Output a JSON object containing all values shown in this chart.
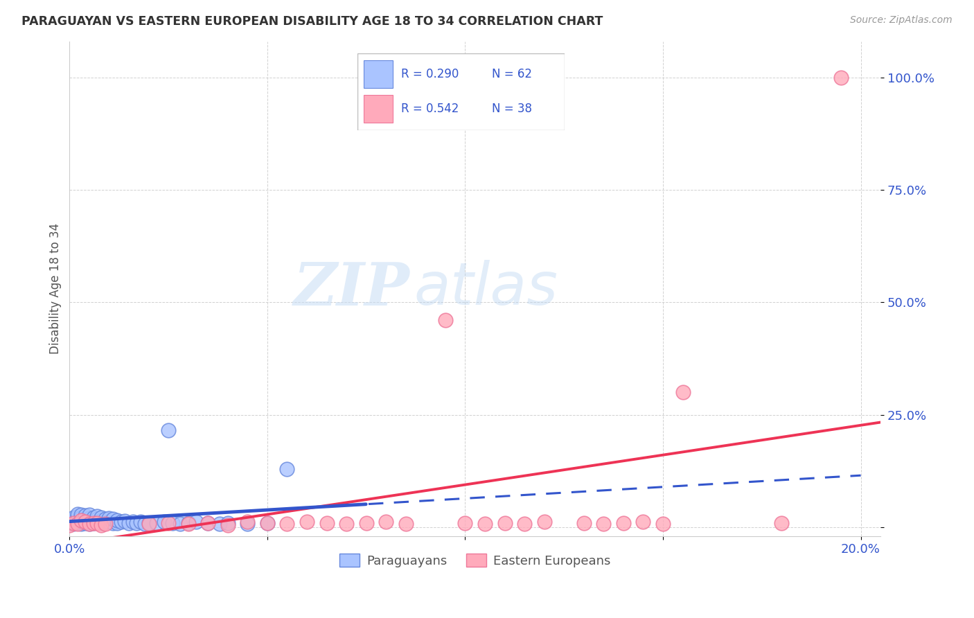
{
  "title": "PARAGUAYAN VS EASTERN EUROPEAN DISABILITY AGE 18 TO 34 CORRELATION CHART",
  "source": "Source: ZipAtlas.com",
  "ylabel": "Disability Age 18 to 34",
  "x_min": 0.0,
  "x_max": 0.205,
  "y_min": -0.02,
  "y_max": 1.08,
  "x_ticks": [
    0.0,
    0.05,
    0.1,
    0.15,
    0.2
  ],
  "x_tick_labels": [
    "0.0%",
    "",
    "",
    "",
    "20.0%"
  ],
  "y_ticks": [
    0.0,
    0.25,
    0.5,
    0.75,
    1.0
  ],
  "y_tick_labels": [
    "",
    "25.0%",
    "50.0%",
    "75.0%",
    "100.0%"
  ],
  "blue_face": "#aac4ff",
  "blue_edge": "#6688dd",
  "pink_face": "#ffaabb",
  "pink_edge": "#ee7799",
  "trend_blue": "#3355cc",
  "trend_pink": "#ee3355",
  "R_paraguayan": 0.29,
  "N_paraguayan": 62,
  "R_eastern": 0.542,
  "N_eastern": 38,
  "watermark_zip": "ZIP",
  "watermark_atlas": "atlas",
  "paraguayan_x": [
    0.0,
    0.0,
    0.001,
    0.001,
    0.001,
    0.001,
    0.002,
    0.002,
    0.002,
    0.002,
    0.002,
    0.003,
    0.003,
    0.003,
    0.003,
    0.003,
    0.004,
    0.004,
    0.004,
    0.004,
    0.005,
    0.005,
    0.005,
    0.005,
    0.006,
    0.006,
    0.006,
    0.007,
    0.007,
    0.007,
    0.008,
    0.008,
    0.008,
    0.009,
    0.009,
    0.01,
    0.01,
    0.011,
    0.011,
    0.012,
    0.012,
    0.013,
    0.014,
    0.015,
    0.016,
    0.017,
    0.018,
    0.019,
    0.02,
    0.022,
    0.024,
    0.026,
    0.028,
    0.03,
    0.032,
    0.035,
    0.038,
    0.04,
    0.045,
    0.05,
    0.025,
    0.055
  ],
  "paraguayan_y": [
    0.01,
    0.015,
    0.008,
    0.012,
    0.018,
    0.022,
    0.01,
    0.014,
    0.018,
    0.025,
    0.03,
    0.008,
    0.012,
    0.016,
    0.022,
    0.028,
    0.01,
    0.014,
    0.02,
    0.026,
    0.008,
    0.015,
    0.02,
    0.028,
    0.01,
    0.016,
    0.022,
    0.012,
    0.018,
    0.025,
    0.01,
    0.016,
    0.022,
    0.012,
    0.018,
    0.012,
    0.02,
    0.01,
    0.018,
    0.01,
    0.016,
    0.012,
    0.014,
    0.01,
    0.012,
    0.01,
    0.012,
    0.008,
    0.01,
    0.01,
    0.012,
    0.01,
    0.008,
    0.01,
    0.012,
    0.01,
    0.008,
    0.01,
    0.008,
    0.01,
    0.215,
    0.13
  ],
  "eastern_x": [
    0.0,
    0.001,
    0.002,
    0.003,
    0.004,
    0.005,
    0.006,
    0.007,
    0.008,
    0.009,
    0.02,
    0.025,
    0.03,
    0.035,
    0.04,
    0.045,
    0.05,
    0.055,
    0.06,
    0.065,
    0.07,
    0.075,
    0.08,
    0.085,
    0.095,
    0.1,
    0.105,
    0.11,
    0.115,
    0.12,
    0.13,
    0.135,
    0.14,
    0.145,
    0.15,
    0.155,
    0.18,
    0.195
  ],
  "eastern_y": [
    0.005,
    0.01,
    0.008,
    0.015,
    0.012,
    0.008,
    0.01,
    0.01,
    0.005,
    0.008,
    0.008,
    0.01,
    0.008,
    0.01,
    0.005,
    0.012,
    0.01,
    0.008,
    0.012,
    0.01,
    0.008,
    0.01,
    0.012,
    0.008,
    0.46,
    0.01,
    0.008,
    0.01,
    0.008,
    0.012,
    0.01,
    0.008,
    0.01,
    0.012,
    0.008,
    0.3,
    0.01,
    1.0
  ]
}
